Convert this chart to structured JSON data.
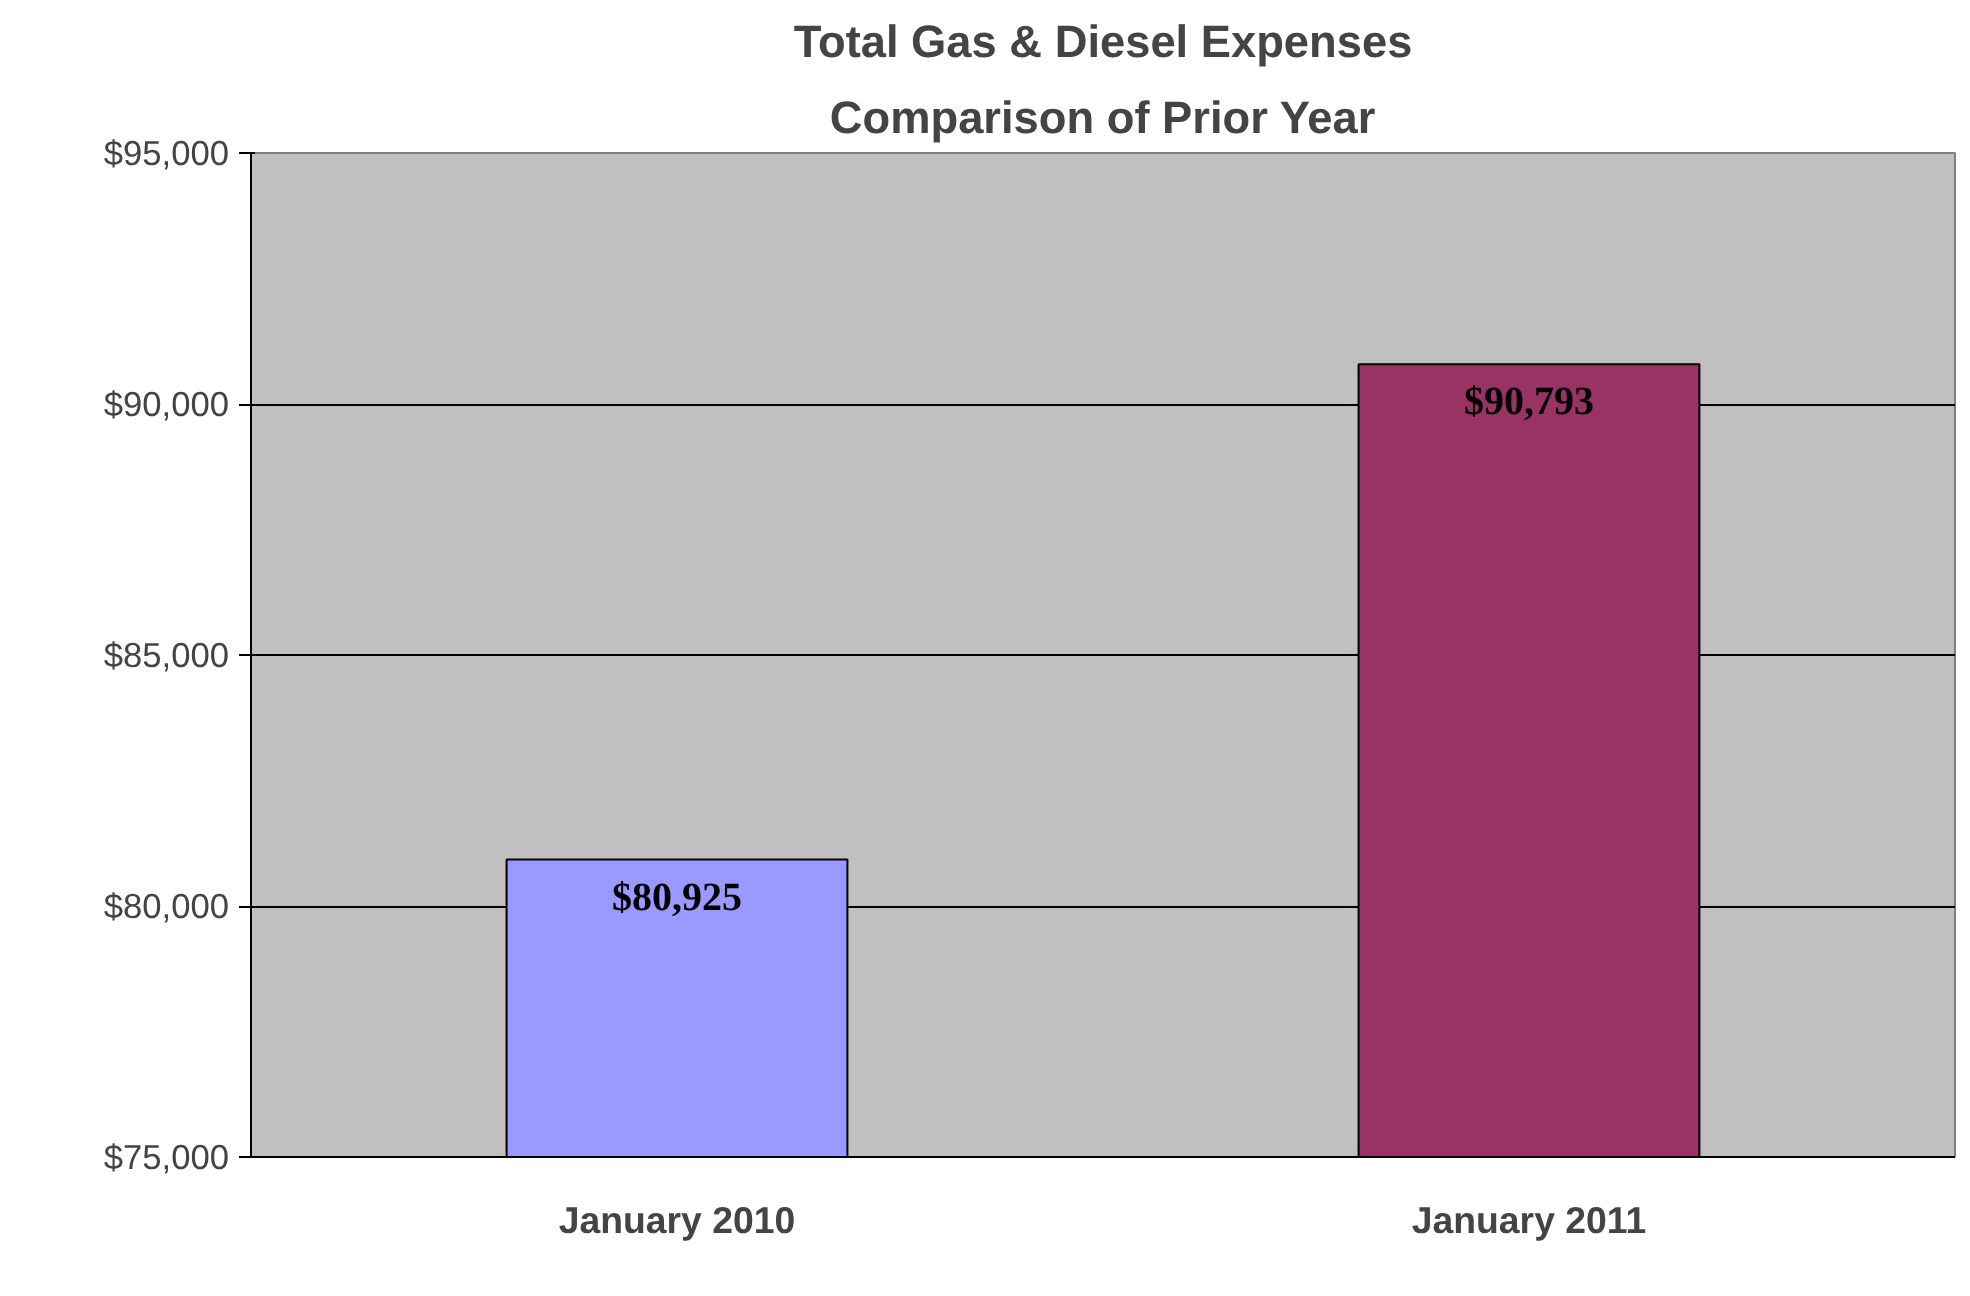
{
  "chart_data": {
    "type": "bar",
    "title": "Total Gas & Diesel Expenses",
    "subtitle": "Comparison of Prior Year",
    "categories": [
      "January 2010",
      "January 2011"
    ],
    "values": [
      80925,
      90793
    ],
    "colors": [
      "#9999ff",
      "#993366"
    ],
    "value_labels": [
      "$80,925",
      "$90,793"
    ],
    "ylim": [
      75000,
      95000
    ],
    "yticks": [
      {
        "value": 75000,
        "label": "$75,000"
      },
      {
        "value": 80000,
        "label": "$80,000"
      },
      {
        "value": 85000,
        "label": "$85,000"
      },
      {
        "value": 90000,
        "label": "$90,000"
      },
      {
        "value": 95000,
        "label": "$95,000"
      }
    ],
    "grid": "y"
  }
}
